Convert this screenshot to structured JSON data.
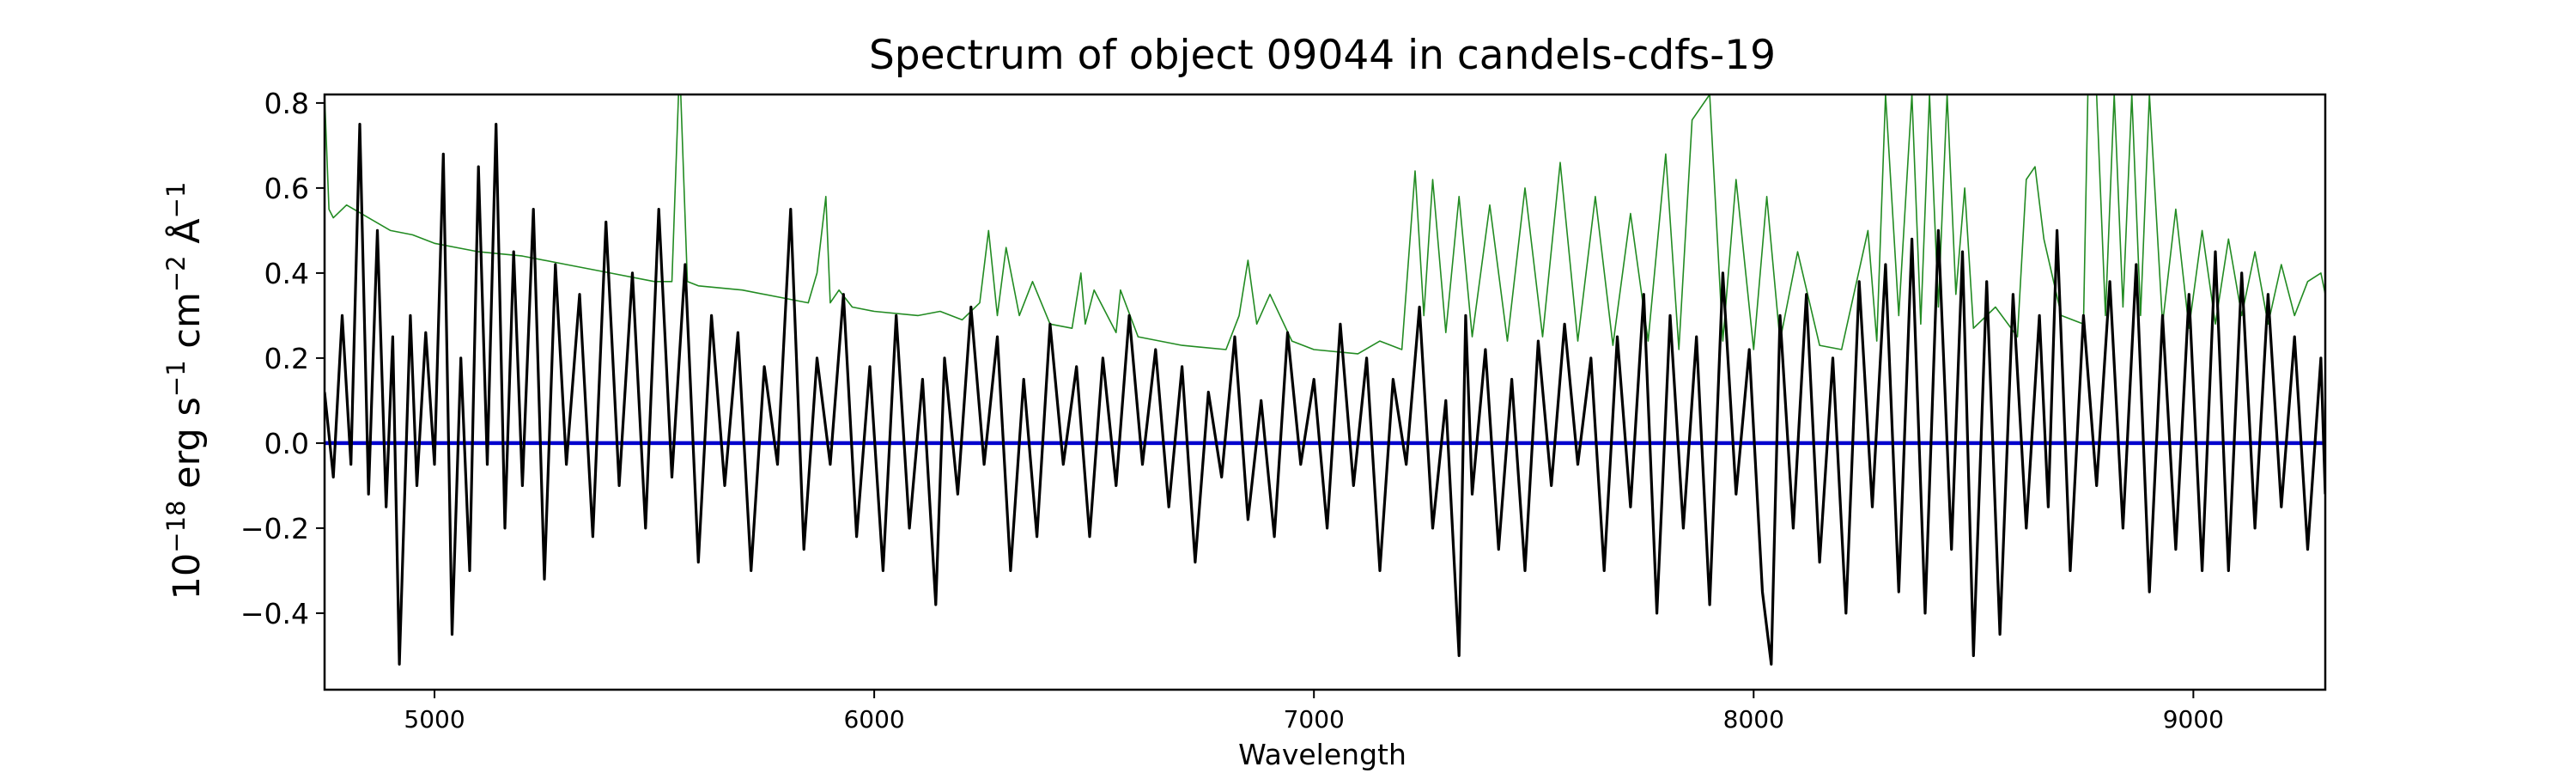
{
  "chart_data": {
    "type": "line",
    "title": "Spectrum of object 09044 in candels-cdfs-19",
    "xlabel": "Wavelength",
    "ylabel": "10⁻¹⁸ erg s⁻¹ cm⁻² Å⁻¹",
    "ylabel_parts": {
      "base1": "10",
      "exp1": "−18",
      "unit1": " erg s",
      "exp2": "−1",
      "unit2": " cm",
      "exp3": "−2",
      "unit3": " Å",
      "exp4": "−1"
    },
    "xlim": [
      4750,
      9300
    ],
    "ylim": [
      -0.58,
      0.82
    ],
    "xticks": [
      {
        "value": 5000,
        "label": "5000"
      },
      {
        "value": 6000,
        "label": "6000"
      },
      {
        "value": 7000,
        "label": "7000"
      },
      {
        "value": 8000,
        "label": "8000"
      },
      {
        "value": 9000,
        "label": "9000"
      }
    ],
    "yticks": [
      {
        "value": -0.4,
        "label": "−0.4"
      },
      {
        "value": -0.2,
        "label": "−0.2"
      },
      {
        "value": 0.0,
        "label": "0.0"
      },
      {
        "value": 0.2,
        "label": "0.2"
      },
      {
        "value": 0.4,
        "label": "0.4"
      },
      {
        "value": 0.6,
        "label": "0.6"
      },
      {
        "value": 0.8,
        "label": "0.8"
      }
    ],
    "grid": false,
    "colors": {
      "flux": "#000000",
      "error": "#228b22",
      "zero": "#0000cd"
    },
    "series": [
      {
        "key": "flux",
        "x": [
          4750,
          4770,
          4790,
          4810,
          4830,
          4850,
          4870,
          4890,
          4905,
          4920,
          4945,
          4960,
          4980,
          5000,
          5020,
          5040,
          5060,
          5080,
          5100,
          5120,
          5140,
          5160,
          5180,
          5200,
          5225,
          5250,
          5275,
          5300,
          5330,
          5360,
          5390,
          5420,
          5450,
          5480,
          5510,
          5540,
          5570,
          5600,
          5630,
          5660,
          5690,
          5720,
          5750,
          5780,
          5810,
          5840,
          5870,
          5900,
          5930,
          5960,
          5990,
          6020,
          6050,
          6080,
          6110,
          6140,
          6160,
          6190,
          6220,
          6250,
          6280,
          6310,
          6340,
          6370,
          6400,
          6430,
          6460,
          6490,
          6520,
          6550,
          6580,
          6610,
          6640,
          6670,
          6700,
          6730,
          6760,
          6790,
          6820,
          6850,
          6880,
          6910,
          6940,
          6970,
          7000,
          7030,
          7060,
          7090,
          7120,
          7150,
          7180,
          7210,
          7240,
          7270,
          7300,
          7330,
          7345,
          7360,
          7390,
          7420,
          7450,
          7480,
          7510,
          7540,
          7570,
          7600,
          7630,
          7660,
          7690,
          7720,
          7750,
          7780,
          7810,
          7840,
          7870,
          7900,
          7930,
          7960,
          7990,
          8020,
          8040,
          8060,
          8090,
          8120,
          8150,
          8180,
          8210,
          8240,
          8270,
          8300,
          8330,
          8360,
          8390,
          8420,
          8450,
          8475,
          8500,
          8530,
          8560,
          8590,
          8620,
          8650,
          8670,
          8690,
          8720,
          8750,
          8780,
          8810,
          8840,
          8870,
          8900,
          8930,
          8960,
          8990,
          9020,
          9050,
          9080,
          9110,
          9140,
          9170,
          9200,
          9230,
          9260,
          9290,
          9300
        ],
        "y": [
          0.12,
          -0.08,
          0.3,
          -0.05,
          0.75,
          -0.12,
          0.5,
          -0.15,
          0.25,
          -0.52,
          0.3,
          -0.1,
          0.26,
          -0.05,
          0.68,
          -0.45,
          0.2,
          -0.3,
          0.65,
          -0.05,
          0.75,
          -0.2,
          0.45,
          -0.1,
          0.55,
          -0.32,
          0.42,
          -0.05,
          0.35,
          -0.22,
          0.52,
          -0.1,
          0.4,
          -0.2,
          0.55,
          -0.08,
          0.42,
          -0.28,
          0.3,
          -0.1,
          0.26,
          -0.3,
          0.18,
          -0.05,
          0.55,
          -0.25,
          0.2,
          -0.05,
          0.35,
          -0.22,
          0.18,
          -0.3,
          0.3,
          -0.2,
          0.15,
          -0.38,
          0.2,
          -0.12,
          0.32,
          -0.05,
          0.25,
          -0.3,
          0.15,
          -0.22,
          0.28,
          -0.05,
          0.18,
          -0.22,
          0.2,
          -0.1,
          0.3,
          -0.05,
          0.22,
          -0.15,
          0.18,
          -0.28,
          0.12,
          -0.08,
          0.25,
          -0.18,
          0.1,
          -0.22,
          0.26,
          -0.05,
          0.15,
          -0.2,
          0.28,
          -0.1,
          0.2,
          -0.3,
          0.15,
          -0.05,
          0.32,
          -0.2,
          0.1,
          -0.5,
          0.3,
          -0.12,
          0.22,
          -0.25,
          0.15,
          -0.3,
          0.24,
          -0.1,
          0.28,
          -0.05,
          0.2,
          -0.3,
          0.25,
          -0.15,
          0.35,
          -0.4,
          0.3,
          -0.2,
          0.25,
          -0.38,
          0.4,
          -0.12,
          0.22,
          -0.35,
          -0.52,
          0.3,
          -0.2,
          0.35,
          -0.28,
          0.2,
          -0.4,
          0.38,
          -0.15,
          0.42,
          -0.35,
          0.48,
          -0.4,
          0.5,
          -0.25,
          0.45,
          -0.5,
          0.38,
          -0.45,
          0.35,
          -0.2,
          0.3,
          -0.15,
          0.5,
          -0.3,
          0.3,
          -0.1,
          0.38,
          -0.2,
          0.42,
          -0.35,
          0.3,
          -0.25,
          0.35,
          -0.3,
          0.45,
          -0.3,
          0.4,
          -0.2,
          0.35,
          -0.15,
          0.25,
          -0.25,
          0.2,
          -0.12
        ]
      },
      {
        "key": "error",
        "x": [
          4750,
          4760,
          4770,
          4800,
          4850,
          4900,
          4950,
          5000,
          5100,
          5200,
          5300,
          5400,
          5500,
          5540,
          5555,
          5560,
          5575,
          5600,
          5700,
          5800,
          5850,
          5870,
          5890,
          5900,
          5920,
          5950,
          6000,
          6100,
          6150,
          6200,
          6240,
          6260,
          6280,
          6300,
          6330,
          6360,
          6400,
          6450,
          6470,
          6480,
          6500,
          6550,
          6560,
          6600,
          6700,
          6800,
          6830,
          6850,
          6870,
          6900,
          6950,
          7000,
          7100,
          7150,
          7200,
          7230,
          7250,
          7270,
          7300,
          7330,
          7360,
          7400,
          7440,
          7480,
          7520,
          7560,
          7600,
          7640,
          7680,
          7720,
          7760,
          7800,
          7830,
          7860,
          7900,
          7930,
          7960,
          8000,
          8030,
          8060,
          8100,
          8150,
          8200,
          8260,
          8280,
          8300,
          8330,
          8360,
          8380,
          8400,
          8420,
          8440,
          8460,
          8480,
          8500,
          8550,
          8600,
          8620,
          8640,
          8660,
          8700,
          8750,
          8760,
          8780,
          8800,
          8820,
          8840,
          8860,
          8880,
          8900,
          8930,
          8960,
          8990,
          9020,
          9050,
          9080,
          9110,
          9140,
          9170,
          9200,
          9230,
          9260,
          9290,
          9300
        ],
        "y": [
          0.82,
          0.55,
          0.53,
          0.56,
          0.53,
          0.5,
          0.49,
          0.47,
          0.45,
          0.44,
          0.42,
          0.4,
          0.38,
          0.38,
          0.82,
          0.82,
          0.38,
          0.37,
          0.36,
          0.34,
          0.33,
          0.4,
          0.58,
          0.33,
          0.36,
          0.32,
          0.31,
          0.3,
          0.31,
          0.29,
          0.33,
          0.5,
          0.3,
          0.46,
          0.3,
          0.38,
          0.28,
          0.27,
          0.4,
          0.28,
          0.36,
          0.26,
          0.36,
          0.25,
          0.23,
          0.22,
          0.3,
          0.43,
          0.28,
          0.35,
          0.24,
          0.22,
          0.21,
          0.24,
          0.22,
          0.64,
          0.3,
          0.62,
          0.26,
          0.58,
          0.25,
          0.56,
          0.24,
          0.6,
          0.25,
          0.66,
          0.24,
          0.58,
          0.23,
          0.54,
          0.24,
          0.68,
          0.22,
          0.76,
          0.82,
          0.24,
          0.62,
          0.22,
          0.58,
          0.24,
          0.45,
          0.23,
          0.22,
          0.5,
          0.24,
          0.82,
          0.3,
          0.82,
          0.28,
          0.82,
          0.32,
          0.82,
          0.35,
          0.6,
          0.27,
          0.32,
          0.25,
          0.62,
          0.65,
          0.48,
          0.3,
          0.28,
          0.82,
          0.82,
          0.3,
          0.82,
          0.32,
          0.82,
          0.3,
          0.82,
          0.28,
          0.55,
          0.27,
          0.5,
          0.28,
          0.48,
          0.3,
          0.45,
          0.28,
          0.42,
          0.3,
          0.38,
          0.4,
          0.35
        ]
      }
    ],
    "reference_line": {
      "y": 0.0,
      "key": "zero"
    }
  }
}
